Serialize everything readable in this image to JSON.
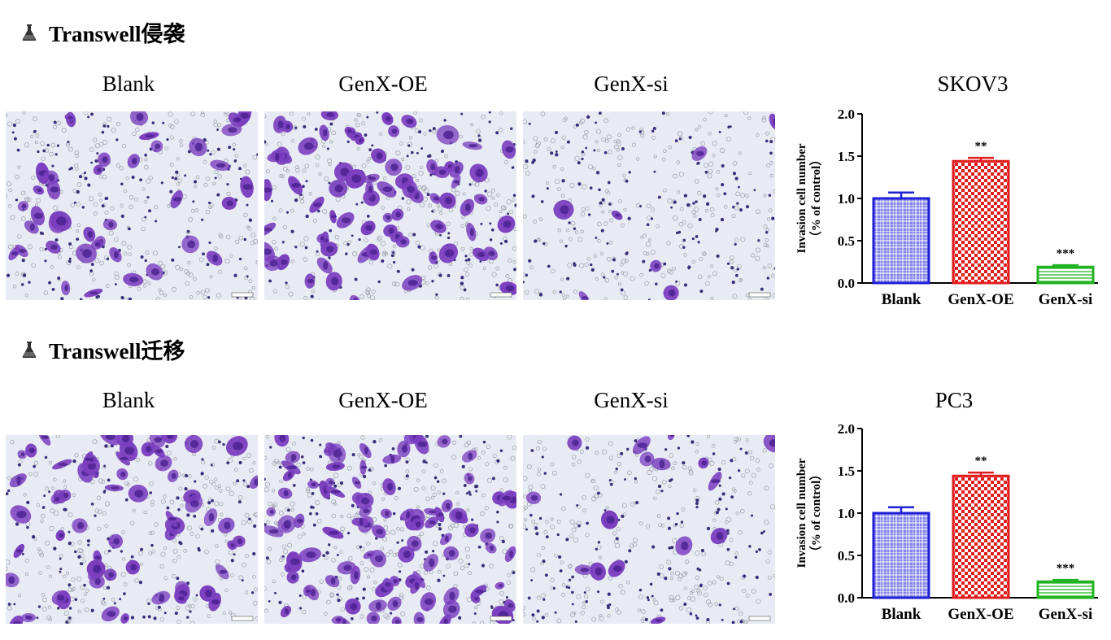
{
  "sections": [
    {
      "title": "Transwell侵袭",
      "icon": "flask-icon",
      "image_labels": [
        "Blank",
        "GenX-OE",
        "GenX-si"
      ],
      "chart_title": "SKOV3"
    },
    {
      "title": "Transwell迁移",
      "icon": "flask-icon",
      "image_labels": [
        "Blank",
        "GenX-OE",
        "GenX-si"
      ],
      "chart_title": "PC3"
    }
  ],
  "colors": {
    "stain": "#7b3fbf",
    "blank_bar": "#1f1fd6",
    "oe_bar": "#e11d1d",
    "si_bar": "#22b322"
  },
  "chart_data": [
    {
      "type": "bar",
      "title": "SKOV3",
      "categories": [
        "Blank",
        "GenX-OE",
        "GenX-si"
      ],
      "values": [
        1.0,
        1.44,
        0.19
      ],
      "errors": [
        0.07,
        0.04,
        0.02
      ],
      "significance": [
        "",
        "**",
        "***"
      ],
      "ylabel": "Invasion cell number",
      "ylabel2": "（% of control）",
      "ylim": [
        0,
        2.0
      ],
      "yticks": [
        "0.0",
        "0.5",
        "1.0",
        "1.5",
        "2.0"
      ]
    },
    {
      "type": "bar",
      "title": "PC3",
      "categories": [
        "Blank",
        "GenX-OE",
        "GenX-si"
      ],
      "values": [
        1.0,
        1.44,
        0.19
      ],
      "errors": [
        0.07,
        0.04,
        0.02
      ],
      "significance": [
        "",
        "**",
        "***"
      ],
      "ylabel": "Invasion cell number",
      "ylabel2": "（% of control）",
      "ylim": [
        0,
        2.0
      ],
      "yticks": [
        "0.0",
        "0.5",
        "1.0",
        "1.5",
        "2.0"
      ]
    }
  ]
}
